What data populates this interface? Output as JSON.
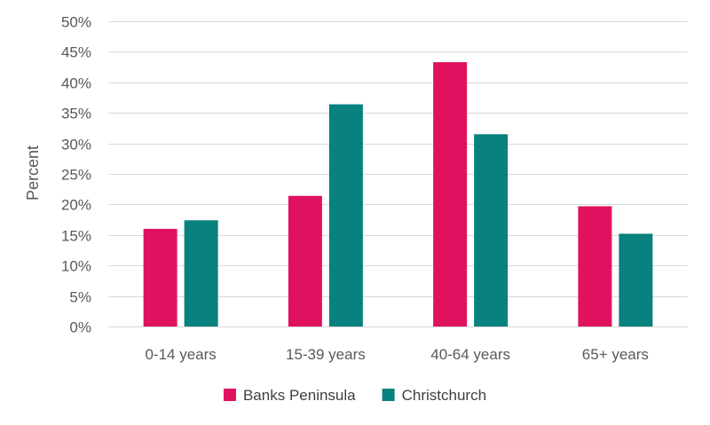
{
  "chart_data": {
    "type": "bar",
    "ylabel": "Percent",
    "ylim": [
      0,
      50
    ],
    "ytick_step": 5,
    "ytick_suffix": "%",
    "grid": true,
    "legend_position": "bottom",
    "categories": [
      "0-14 years",
      "15-39 years",
      "40-64 years",
      "65+ years"
    ],
    "series": [
      {
        "name": "Banks Peninsula",
        "color": "#e0115f",
        "values": [
          16.0,
          21.4,
          43.3,
          19.7
        ]
      },
      {
        "name": "Christchurch",
        "color": "#08817f",
        "values": [
          17.4,
          36.4,
          31.5,
          15.2
        ]
      }
    ]
  }
}
